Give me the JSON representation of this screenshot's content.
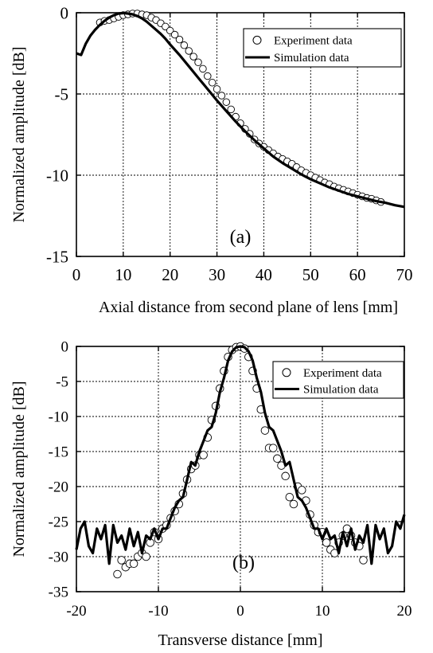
{
  "chart_data": [
    {
      "type": "line",
      "panel_label": "(a)",
      "xlabel": "Axial distance from second plane of lens [mm]",
      "ylabel": "Normalized amplitude [dB]",
      "xlim": [
        0,
        70
      ],
      "ylim": [
        -15,
        0
      ],
      "x_ticks": [
        "0",
        "10",
        "20",
        "30",
        "40",
        "50",
        "60",
        "70"
      ],
      "y_ticks": [
        "0",
        "-5",
        "-10",
        "-15"
      ],
      "grid": true,
      "legend_position": "top-right",
      "series": [
        {
          "name": "Experiment data",
          "style": "markers",
          "x": [
            5,
            6,
            7,
            8,
            9,
            10,
            11,
            12,
            13,
            14,
            15,
            16,
            17,
            18,
            19,
            20,
            21,
            22,
            23,
            24,
            25,
            26,
            27,
            28,
            29,
            30,
            31,
            32,
            33,
            34,
            35,
            36,
            37,
            38,
            39,
            40,
            41,
            42,
            43,
            44,
            45,
            46,
            47,
            48,
            49,
            50,
            51,
            52,
            53,
            54,
            55,
            56,
            57,
            58,
            59,
            60,
            61,
            62,
            63,
            64,
            65
          ],
          "y": [
            -0.6,
            -0.5,
            -0.45,
            -0.35,
            -0.25,
            -0.15,
            -0.1,
            -0.05,
            -0.05,
            -0.1,
            -0.15,
            -0.3,
            -0.45,
            -0.65,
            -0.85,
            -1.1,
            -1.35,
            -1.65,
            -2.0,
            -2.35,
            -2.7,
            -3.05,
            -3.45,
            -3.9,
            -4.3,
            -4.7,
            -5.1,
            -5.5,
            -5.95,
            -6.4,
            -6.8,
            -7.15,
            -7.45,
            -7.8,
            -8.05,
            -8.25,
            -8.45,
            -8.65,
            -8.85,
            -9.0,
            -9.15,
            -9.3,
            -9.5,
            -9.7,
            -9.85,
            -10.0,
            -10.15,
            -10.3,
            -10.45,
            -10.55,
            -10.7,
            -10.8,
            -10.9,
            -11.0,
            -11.1,
            -11.2,
            -11.3,
            -11.4,
            -11.45,
            -11.55,
            -11.65
          ]
        },
        {
          "name": "Simulation data",
          "style": "line",
          "x": [
            0,
            1,
            2,
            3,
            4,
            5,
            6,
            7,
            8,
            9,
            10,
            11,
            12,
            13,
            14,
            15,
            16,
            17,
            18,
            19,
            20,
            22,
            24,
            26,
            28,
            30,
            32,
            34,
            36,
            38,
            40,
            42,
            44,
            46,
            48,
            50,
            52,
            54,
            56,
            58,
            60,
            62,
            64,
            66,
            68,
            70
          ],
          "y": [
            -2.5,
            -2.6,
            -1.9,
            -1.4,
            -1.05,
            -0.75,
            -0.5,
            -0.3,
            -0.15,
            -0.05,
            -0.02,
            -0.05,
            -0.1,
            -0.2,
            -0.35,
            -0.55,
            -0.8,
            -1.05,
            -1.3,
            -1.6,
            -1.95,
            -2.6,
            -3.3,
            -4.0,
            -4.7,
            -5.4,
            -6.05,
            -6.7,
            -7.3,
            -7.85,
            -8.35,
            -8.85,
            -9.25,
            -9.6,
            -9.95,
            -10.25,
            -10.5,
            -10.75,
            -10.95,
            -11.15,
            -11.3,
            -11.45,
            -11.6,
            -11.7,
            -11.85,
            -11.95
          ]
        }
      ]
    },
    {
      "type": "line",
      "panel_label": "(b)",
      "xlabel": "Transverse distance [mm]",
      "ylabel": "Normalized amplitude [dB]",
      "xlim": [
        -20,
        20
      ],
      "ylim": [
        -35,
        0
      ],
      "x_ticks": [
        "-20",
        "-10",
        "0",
        "10",
        "20"
      ],
      "y_ticks": [
        "0",
        "-5",
        "-10",
        "-15",
        "-20",
        "-25",
        "-30",
        "-35"
      ],
      "grid": true,
      "legend_position": "top-right",
      "series": [
        {
          "name": "Experiment data",
          "style": "markers",
          "x": [
            -15,
            -14.5,
            -14,
            -13.5,
            -13,
            -12.5,
            -12,
            -11.5,
            -11,
            -10.5,
            -10,
            -9.5,
            -9,
            -8.5,
            -8,
            -7.5,
            -7,
            -6.5,
            -6,
            -5.5,
            -5,
            -4.5,
            -4,
            -3.5,
            -3,
            -2.5,
            -2,
            -1.5,
            -1,
            -0.5,
            0,
            0.5,
            1,
            1.5,
            2,
            2.5,
            3,
            3.5,
            4,
            4.5,
            5,
            5.5,
            6,
            6.5,
            7,
            7.5,
            8,
            8.5,
            9,
            9.5,
            10,
            10.5,
            11,
            11.5,
            12,
            12.5,
            13,
            13.5,
            14,
            14.5,
            15
          ],
          "y": [
            -32.5,
            -30.5,
            -31.5,
            -31,
            -31,
            -30,
            -29.5,
            -30,
            -28,
            -26.5,
            -27.5,
            -26,
            -25.5,
            -24.5,
            -23.5,
            -22.5,
            -21,
            -19,
            -17.5,
            -17,
            -15.5,
            -15.5,
            -13,
            -10.5,
            -8.5,
            -6,
            -3.5,
            -1.5,
            -0.5,
            -0.1,
            0,
            -0.3,
            -1.5,
            -3.5,
            -6,
            -9,
            -12,
            -14.5,
            -14.5,
            -16,
            -17,
            -18.5,
            -21.5,
            -22.5,
            -20,
            -20.5,
            -22,
            -24,
            -25.5,
            -26.5,
            -26.5,
            -28,
            -29,
            -29.5,
            -28,
            -27,
            -26,
            -27,
            -28,
            -28.5,
            -30.5
          ]
        },
        {
          "name": "Simulation data",
          "style": "line",
          "x": [
            -20,
            -19.5,
            -19,
            -18.5,
            -18,
            -17.5,
            -17,
            -16.5,
            -16,
            -15.5,
            -15,
            -14.5,
            -14,
            -13.5,
            -13,
            -12.5,
            -12,
            -11.5,
            -11,
            -10.5,
            -10,
            -9.5,
            -9,
            -8.5,
            -8,
            -7.5,
            -7,
            -6.5,
            -6,
            -5.5,
            -5,
            -4.5,
            -4,
            -3.5,
            -3,
            -2.5,
            -2,
            -1.5,
            -1,
            -0.5,
            0,
            0.5,
            1,
            1.5,
            2,
            2.5,
            3,
            3.5,
            4,
            4.5,
            5,
            5.5,
            6,
            6.5,
            7,
            7.5,
            8,
            8.5,
            9,
            9.5,
            10,
            10.5,
            11,
            11.5,
            12,
            12.5,
            13,
            13.5,
            14,
            14.5,
            15,
            15.5,
            16,
            16.5,
            17,
            17.5,
            18,
            18.5,
            19,
            19.5,
            20
          ],
          "y": [
            -29,
            -26,
            -25,
            -28.5,
            -29.5,
            -26,
            -27.5,
            -25.5,
            -31,
            -25.5,
            -28,
            -27,
            -29,
            -26,
            -28.5,
            -26.5,
            -29.5,
            -27,
            -27.5,
            -26,
            -27.5,
            -26,
            -26,
            -24.5,
            -23,
            -22,
            -21.5,
            -19,
            -16.5,
            -17,
            -15,
            -13.5,
            -12,
            -11.5,
            -9.5,
            -6.5,
            -4.5,
            -2,
            -0.7,
            -0.1,
            0,
            -0.1,
            -0.7,
            -2,
            -4.5,
            -6.5,
            -9.5,
            -11.5,
            -12,
            -13.5,
            -15,
            -17,
            -16.5,
            -19,
            -21.5,
            -22,
            -23,
            -24.5,
            -26,
            -26,
            -27.5,
            -26,
            -27.5,
            -27,
            -29.5,
            -26.5,
            -28.5,
            -26,
            -29,
            -27,
            -28,
            -25.5,
            -31,
            -25.5,
            -27.5,
            -26,
            -29.5,
            -28.5,
            -25,
            -26,
            -24
          ]
        }
      ]
    }
  ]
}
